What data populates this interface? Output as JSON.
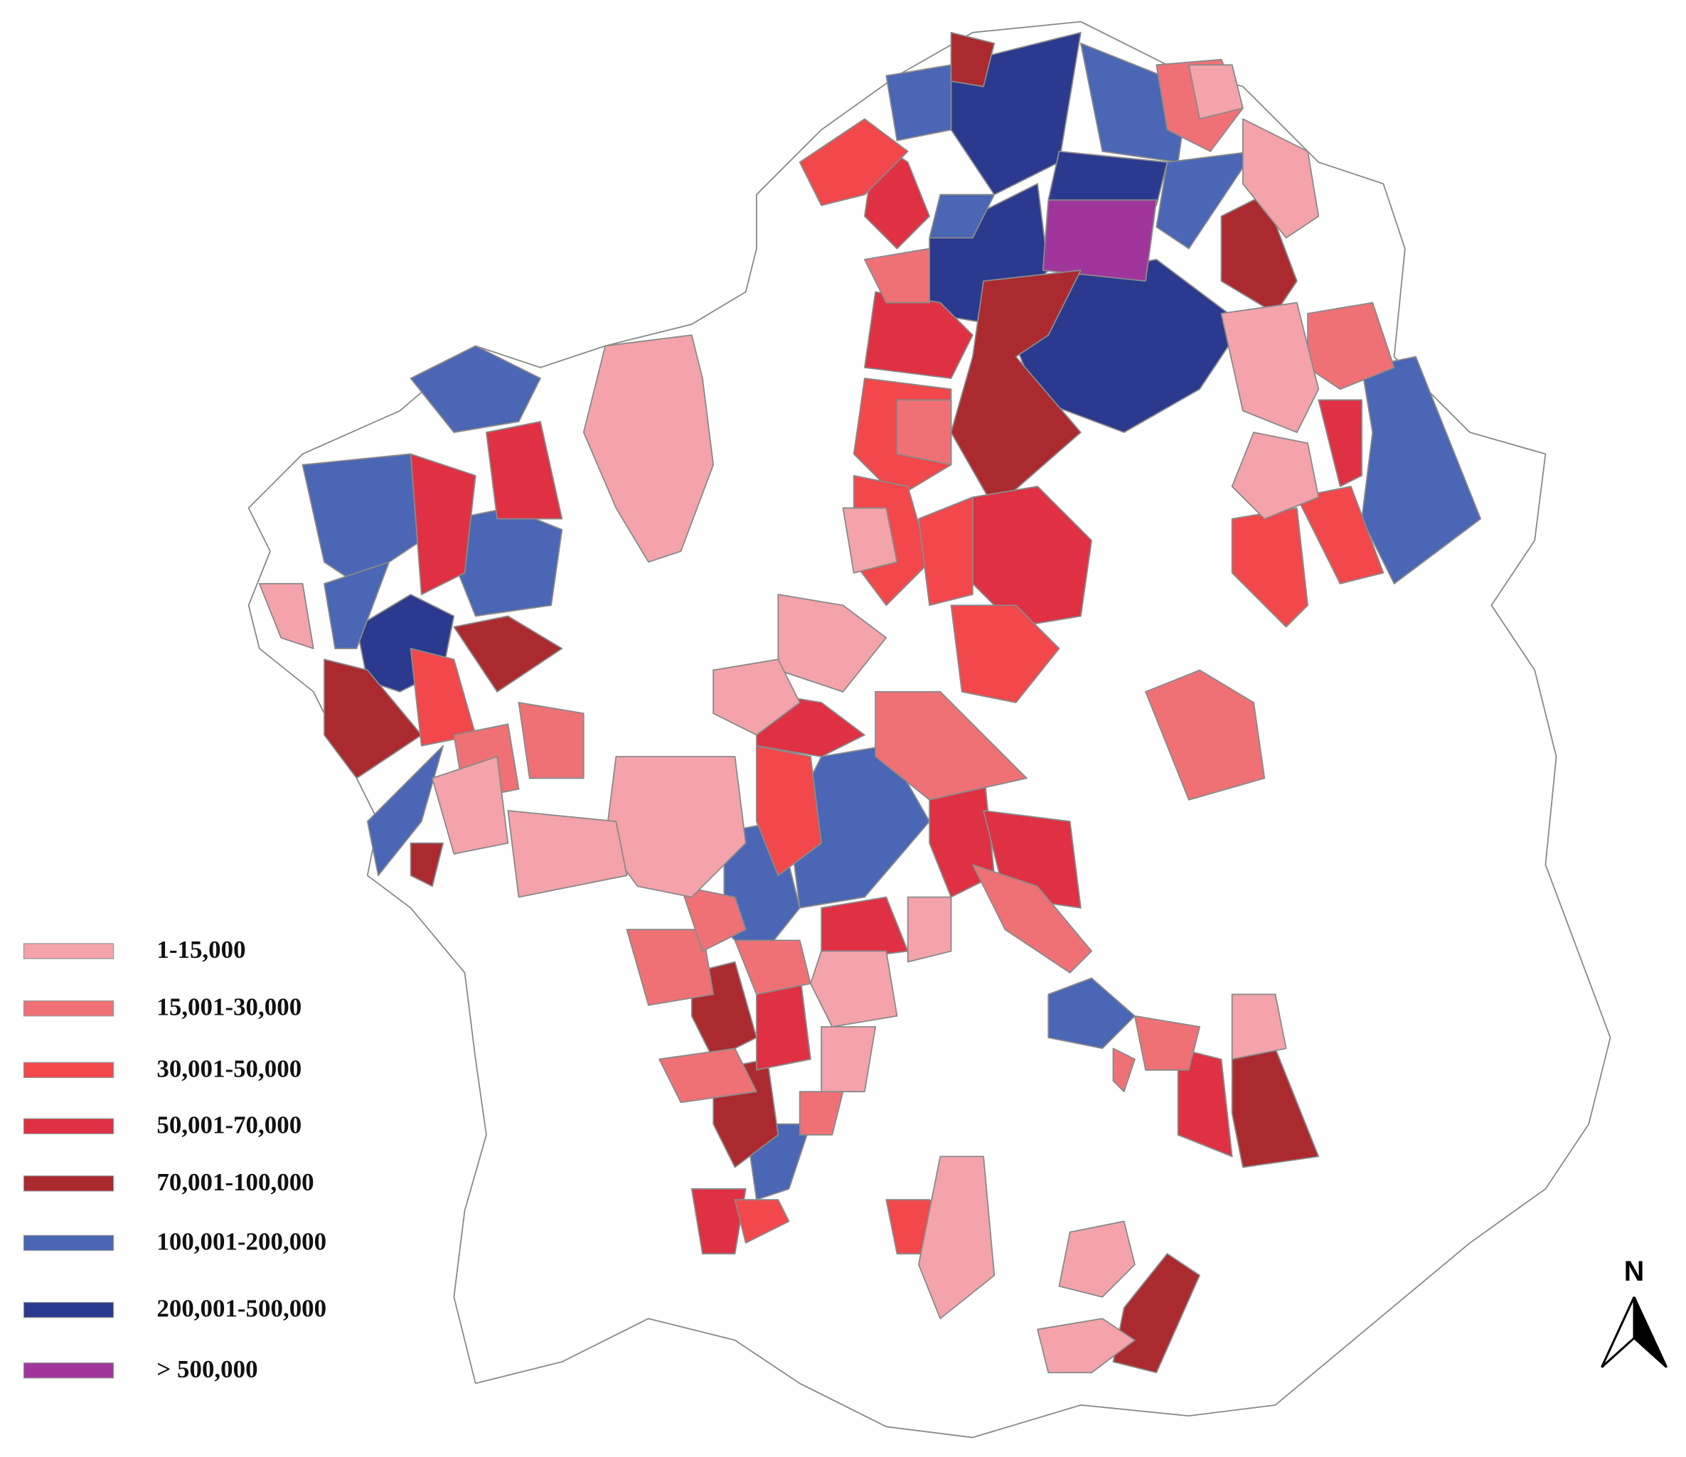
{
  "legend": {
    "items": [
      {
        "label": "1-15,000",
        "color": "#f4a3aa"
      },
      {
        "label": "15,001-30,000",
        "color": "#ef7176"
      },
      {
        "label": "30,001-50,000",
        "color": "#f2474b"
      },
      {
        "label": "50,001-70,000",
        "color": "#df3044"
      },
      {
        "label": "70,001-100,000",
        "color": "#ab2a30"
      },
      {
        "label": "100,001-200,000",
        "color": "#4a66b4"
      },
      {
        "label": "200,001-500,000",
        "color": "#2b3a8e"
      },
      {
        "label": "> 500,000",
        "color": "#a0369b"
      }
    ]
  },
  "north_arrow": {
    "label": "N"
  }
}
